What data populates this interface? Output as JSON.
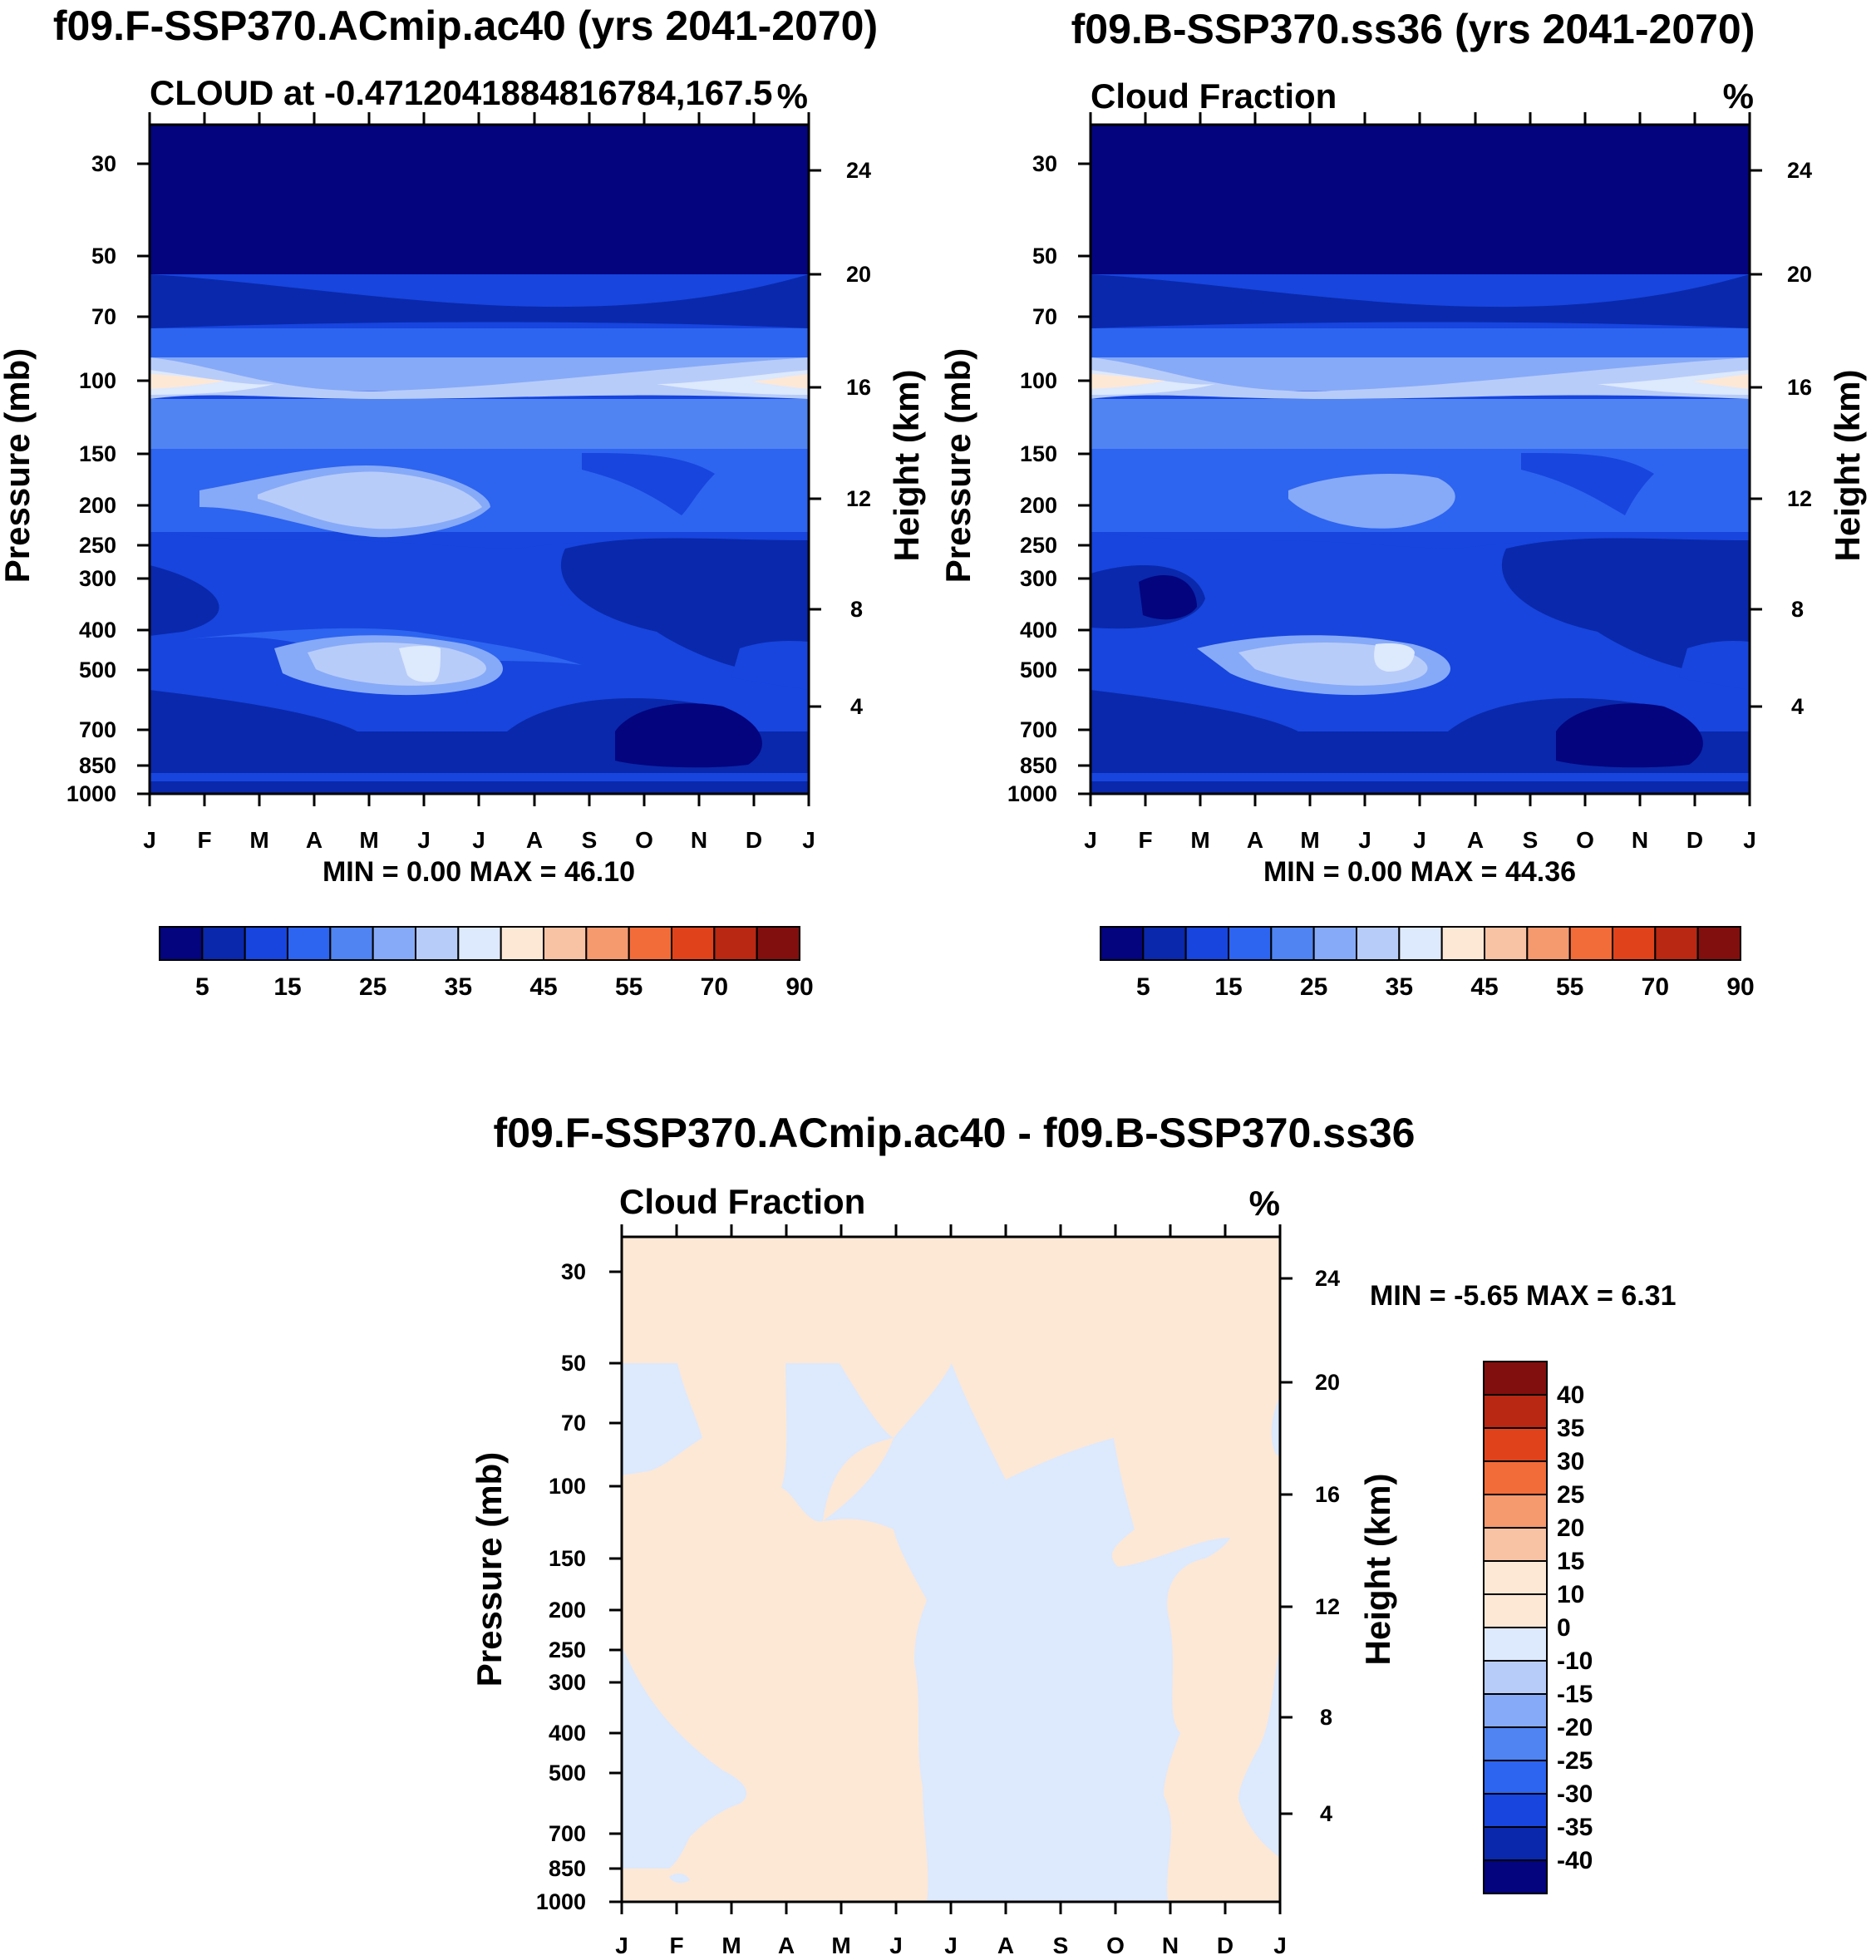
{
  "chart_data": [
    {
      "type": "contour",
      "title": "f09.F-SSP370.ACmip.ac40 (yrs 2041-2070)",
      "subtitle_left": "CLOUD at -0.4712041884816784,167.5",
      "subtitle_right": "%",
      "ylabel": "Pressure (mb)",
      "ylabel_right": "Height (km)",
      "pressure_ticks": [
        "30",
        "50",
        "70",
        "100",
        "150",
        "200",
        "250",
        "300",
        "400",
        "500",
        "700",
        "850",
        "1000"
      ],
      "height_ticks": [
        "24",
        "20",
        "16",
        "12",
        "8",
        "4"
      ],
      "month_ticks": [
        "J",
        "F",
        "M",
        "A",
        "M",
        "J",
        "J",
        "A",
        "S",
        "O",
        "N",
        "D",
        "J"
      ],
      "stats": "MIN =   0.00 MAX =  46.10",
      "colorbar_labels": [
        "5",
        "15",
        "25",
        "35",
        "45",
        "55",
        "70",
        "90"
      ],
      "colorbar_colors": [
        "#03047e",
        "#0a28ab",
        "#1745de",
        "#2d64f0",
        "#4f84f2",
        "#86aaf8",
        "#b8ccfa",
        "#dde9fc",
        "#fde8d6",
        "#f8c2a4",
        "#f5996f",
        "#f26c39",
        "#e0431b",
        "#b82812",
        "#810f0e"
      ]
    },
    {
      "type": "contour",
      "title": "f09.B-SSP370.ss36 (yrs 2041-2070)",
      "subtitle_left": "Cloud Fraction",
      "subtitle_right": "%",
      "ylabel": "Pressure (mb)",
      "ylabel_right": "Height (km)",
      "pressure_ticks": [
        "30",
        "50",
        "70",
        "100",
        "150",
        "200",
        "250",
        "300",
        "400",
        "500",
        "700",
        "850",
        "1000"
      ],
      "height_ticks": [
        "24",
        "20",
        "16",
        "12",
        "8",
        "4"
      ],
      "month_ticks": [
        "J",
        "F",
        "M",
        "A",
        "M",
        "J",
        "J",
        "A",
        "S",
        "O",
        "N",
        "D",
        "J"
      ],
      "stats": "MIN =   0.00 MAX =  44.36",
      "colorbar_labels": [
        "5",
        "15",
        "25",
        "35",
        "45",
        "55",
        "70",
        "90"
      ],
      "colorbar_colors": [
        "#03047e",
        "#0a28ab",
        "#1745de",
        "#2d64f0",
        "#4f84f2",
        "#86aaf8",
        "#b8ccfa",
        "#dde9fc",
        "#fde8d6",
        "#f8c2a4",
        "#f5996f",
        "#f26c39",
        "#e0431b",
        "#b82812",
        "#810f0e"
      ]
    },
    {
      "type": "contour",
      "title": "f09.F-SSP370.ACmip.ac40 - f09.B-SSP370.ss36",
      "subtitle_left": "Cloud Fraction",
      "subtitle_right": "%",
      "ylabel": "Pressure (mb)",
      "ylabel_right": "Height (km)",
      "pressure_ticks": [
        "30",
        "50",
        "70",
        "100",
        "150",
        "200",
        "250",
        "300",
        "400",
        "500",
        "700",
        "850",
        "1000"
      ],
      "height_ticks": [
        "24",
        "20",
        "16",
        "12",
        "8",
        "4"
      ],
      "month_ticks": [
        "J",
        "F",
        "M",
        "A",
        "M",
        "J",
        "J",
        "A",
        "S",
        "O",
        "N",
        "D",
        "J"
      ],
      "stats": "MIN =  -5.65 MAX =   6.31",
      "colorbar_labels": [
        "40",
        "35",
        "30",
        "25",
        "20",
        "15",
        "10",
        "0",
        "-10",
        "-15",
        "-20",
        "-25",
        "-30",
        "-35",
        "-40"
      ],
      "colorbar_colors": [
        "#810f0e",
        "#b82812",
        "#e0431b",
        "#f26c39",
        "#f5996f",
        "#f8c2a4",
        "#fde8d6",
        "#fde8d6",
        "#dde9fc",
        "#b8ccfa",
        "#86aaf8",
        "#4f84f2",
        "#2d64f0",
        "#1745de",
        "#0a28ab",
        "#03047e"
      ]
    }
  ]
}
